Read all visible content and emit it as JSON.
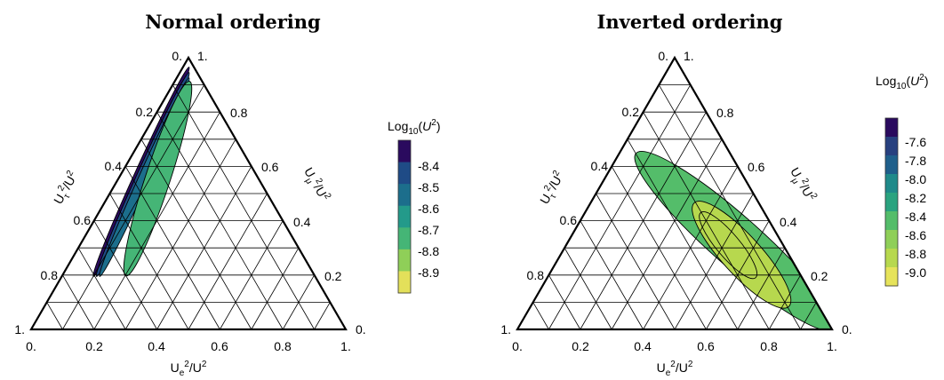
{
  "chart_data": [
    {
      "type": "ternary-contour",
      "title": "Normal ordering",
      "axes": {
        "bottom": {
          "label": "U_e^2/U^2",
          "ticks": [
            "0.",
            "0.2",
            "0.4",
            "0.6",
            "0.8",
            "1."
          ]
        },
        "right": {
          "label": "U_μ^2/U^2",
          "ticks": [
            "0.",
            "0.2",
            "0.4",
            "0.6",
            "0.8",
            "1."
          ]
        },
        "left": {
          "label": "U_τ^2/U^2",
          "ticks": [
            "0.",
            "0.2",
            "0.4",
            "0.6",
            "0.8",
            "1."
          ]
        }
      },
      "grid": true,
      "colorbar": {
        "label": "Log10(U^2)",
        "ticks": [
          "-8.4",
          "-8.5",
          "-8.6",
          "-8.7",
          "-8.8",
          "-8.9"
        ],
        "levels": [
          -8.35,
          -8.45,
          -8.55,
          -8.65,
          -8.75,
          -8.85,
          -8.95
        ],
        "colors": [
          "#2a0a5e",
          "#1f4b86",
          "#1c6e8c",
          "#239a8a",
          "#45b576",
          "#8fcf58",
          "#e3e05a"
        ]
      },
      "regions": [
        {
          "log10_U2": -8.35,
          "e": [
            0.02,
            0.1
          ],
          "tau": [
            0.96,
            0.2
          ]
        },
        {
          "log10_U2": -8.45,
          "e": [
            0.03,
            0.11
          ],
          "tau": [
            0.94,
            0.2
          ]
        },
        {
          "log10_U2": -8.55,
          "e": [
            0.04,
            0.12
          ],
          "tau": [
            0.92,
            0.2
          ]
        },
        {
          "log10_U2": -8.75,
          "e": [
            0.05,
            0.2
          ],
          "tau": [
            0.9,
            0.21
          ]
        }
      ]
    },
    {
      "type": "ternary-contour",
      "title": "Inverted ordering",
      "axes": {
        "bottom": {
          "label": "U_e^2/U^2",
          "ticks": [
            "0.",
            "0.2",
            "0.4",
            "0.6",
            "0.8",
            "1."
          ]
        },
        "right": {
          "label": "U_μ^2/U^2",
          "ticks": [
            "0.",
            "0.2",
            "0.4",
            "0.6",
            "0.8",
            "1."
          ]
        },
        "left": {
          "label": "U_τ^2/U^2",
          "ticks": [
            "0.",
            "0.2",
            "0.4",
            "0.6",
            "0.8",
            "1."
          ]
        }
      },
      "grid": true,
      "colorbar": {
        "label": "Log10(U^2)",
        "ticks": [
          "-7.6",
          "-7.8",
          "-8.0",
          "-8.2",
          "-8.4",
          "-8.6",
          "-8.8",
          "-9.0"
        ],
        "levels": [
          -7.5,
          -7.7,
          -7.9,
          -8.1,
          -8.3,
          -8.5,
          -8.7,
          -8.9,
          -9.1
        ],
        "colors": [
          "#2a0a5e",
          "#27407f",
          "#1f5f8b",
          "#1f8a8a",
          "#2aa37f",
          "#54bd6a",
          "#8fcf58",
          "#b7d84e",
          "#e6e35a"
        ]
      },
      "regions": [
        {
          "log10_U2": -8.55,
          "e": [
            0.08,
            0.98
          ],
          "tau": [
            0.63,
            0.02
          ]
        },
        {
          "log10_U2": -8.8,
          "e": [
            0.35,
            0.8
          ],
          "tau": [
            0.45,
            0.1
          ]
        },
        {
          "log10_U2": -8.95,
          "e": [
            0.38,
            0.65
          ],
          "tau": [
            0.42,
            0.2
          ]
        }
      ]
    }
  ]
}
